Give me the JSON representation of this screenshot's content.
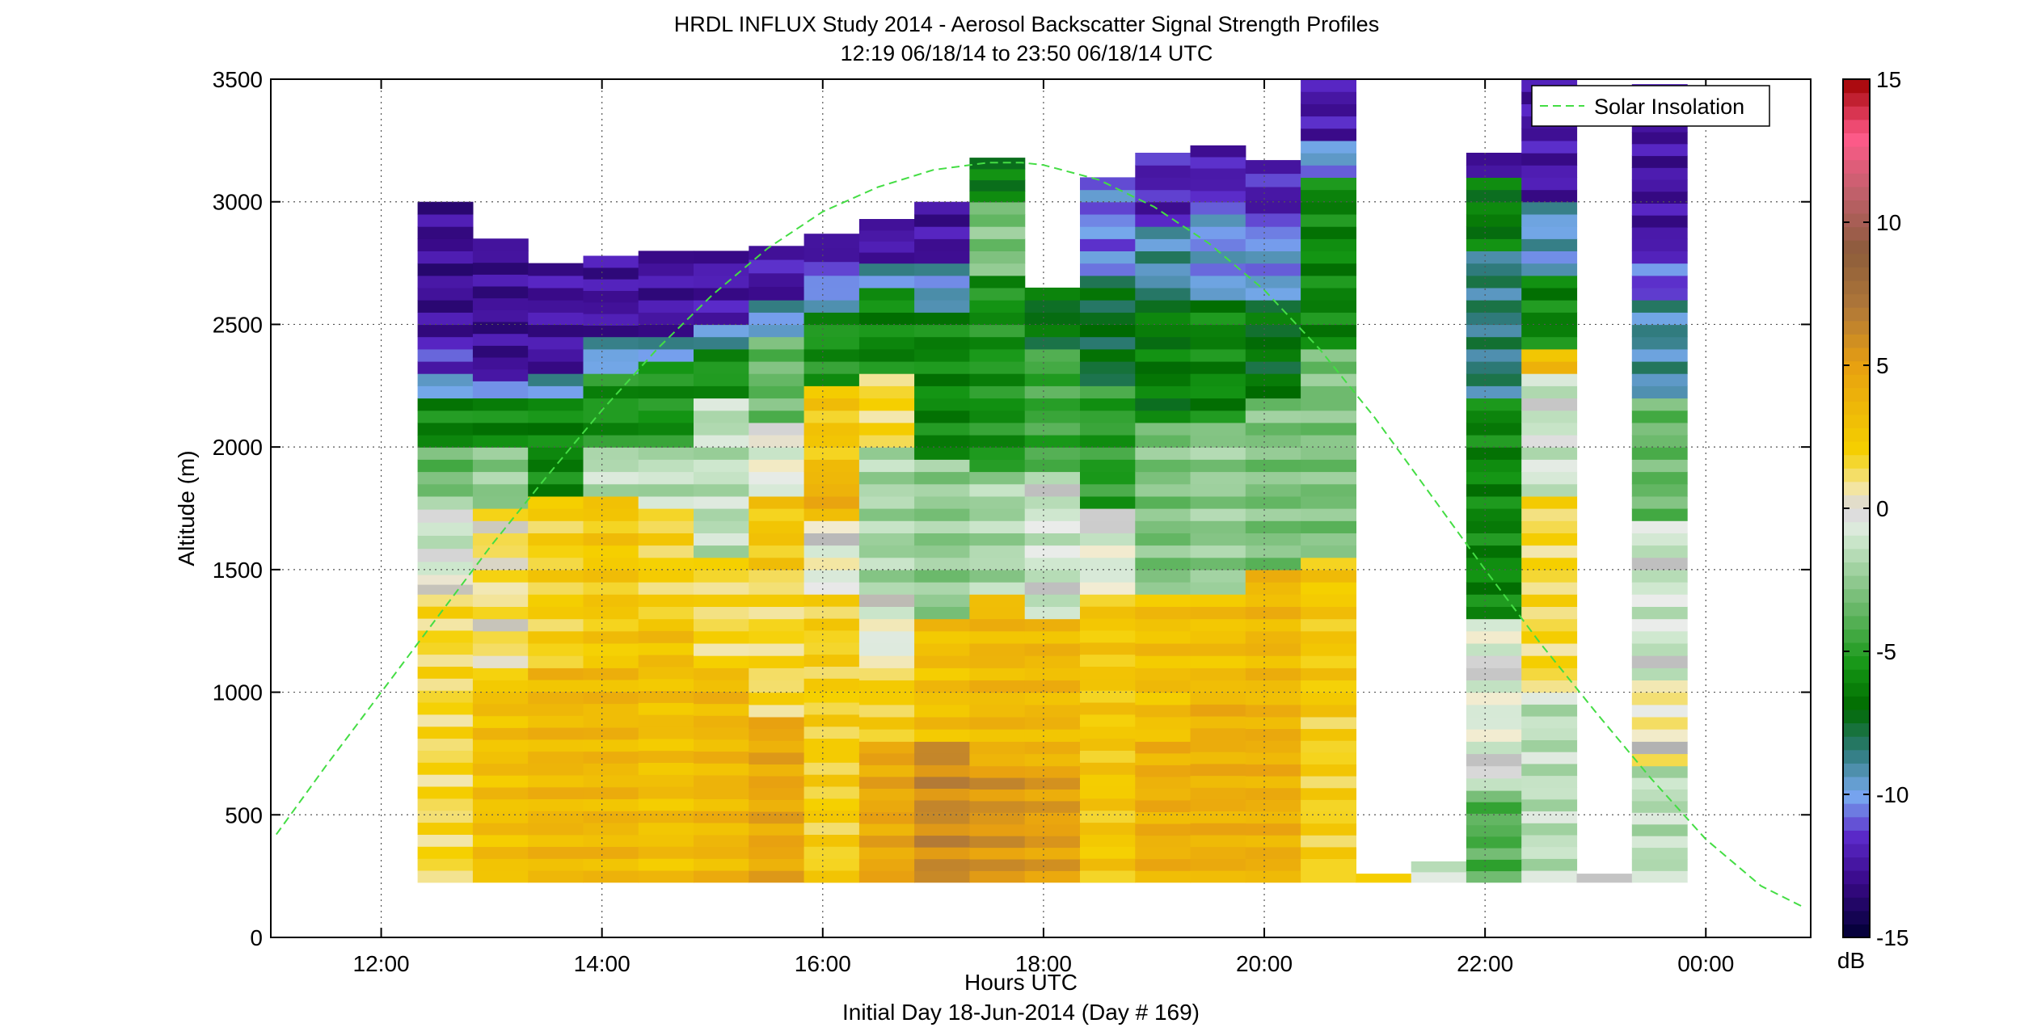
{
  "chart_data": {
    "type": "heatmap",
    "title": "HRDL INFLUX Study 2014 - Aerosol Backscatter Signal Strength Profiles",
    "subtitle": "12:19 06/18/14 to 23:50 06/18/14  UTC",
    "xlabel": "Hours UTC",
    "xlabel2": "Initial Day 18-Jun-2014 (Day # 169)",
    "ylabel": "Altitude (m)",
    "colorbar_label": "dB",
    "xlim": [
      11.0,
      24.95
    ],
    "ylim": [
      0,
      3500
    ],
    "clim": [
      -15,
      15
    ],
    "grid": true,
    "x_ticks": [
      12,
      14,
      16,
      18,
      20,
      22,
      24
    ],
    "x_tick_labels": [
      "12:00",
      "14:00",
      "16:00",
      "18:00",
      "20:00",
      "22:00",
      "00:00"
    ],
    "y_ticks": [
      0,
      500,
      1000,
      1500,
      2000,
      2500,
      3000,
      3500
    ],
    "y_tick_labels": [
      "0",
      "500",
      "1000",
      "1500",
      "2000",
      "2500",
      "3000",
      "3500"
    ],
    "colorbar_ticks": [
      -15,
      -10,
      -5,
      0,
      5,
      10,
      15
    ],
    "colorbar_tick_labels": [
      "-15",
      "-10",
      "-5",
      "0",
      "5",
      "10",
      "15"
    ],
    "colormap": [
      {
        "v": -15,
        "color": "#000033"
      },
      {
        "v": -13,
        "color": "#3a0a8a"
      },
      {
        "v": -11.5,
        "color": "#5a28c8"
      },
      {
        "v": -10,
        "color": "#78aaf0"
      },
      {
        "v": -8.5,
        "color": "#2e7a7a"
      },
      {
        "v": -7,
        "color": "#006a00"
      },
      {
        "v": -5.5,
        "color": "#149614"
      },
      {
        "v": -3,
        "color": "#7cc07c"
      },
      {
        "v": -1,
        "color": "#d0e8d0"
      },
      {
        "v": -0.3,
        "color": "#ececec"
      },
      {
        "v": 0,
        "color": "#a8a8a8"
      },
      {
        "v": 0.3,
        "color": "#f2ecd4"
      },
      {
        "v": 2,
        "color": "#f5d000"
      },
      {
        "v": 5,
        "color": "#e8a010"
      },
      {
        "v": 7,
        "color": "#b07838"
      },
      {
        "v": 9,
        "color": "#8c5c3c"
      },
      {
        "v": 11,
        "color": "#c0606a"
      },
      {
        "v": 13,
        "color": "#ff5a8a"
      },
      {
        "v": 15,
        "color": "#a00000"
      }
    ],
    "legend": {
      "position": "top-right",
      "entries": [
        "Solar Insolation"
      ],
      "line_color": "#44dd44"
    },
    "solar_insolation_curve": {
      "x": [
        11.05,
        11.5,
        12.0,
        12.5,
        13.0,
        13.5,
        14.0,
        14.5,
        15.0,
        15.5,
        16.0,
        16.5,
        17.0,
        17.5,
        17.8,
        18.0,
        18.5,
        19.0,
        19.5,
        20.0,
        20.5,
        21.0,
        21.5,
        22.0,
        22.5,
        23.0,
        23.5,
        24.0,
        24.5,
        24.9
      ],
      "y": [
        420,
        700,
        1000,
        1300,
        1600,
        1880,
        2150,
        2400,
        2620,
        2810,
        2960,
        3060,
        3130,
        3160,
        3160,
        3150,
        3090,
        2980,
        2830,
        2640,
        2400,
        2120,
        1810,
        1500,
        1200,
        920,
        650,
        400,
        210,
        120
      ]
    },
    "profiles": [
      {
        "t0": 12.33,
        "t1": 12.83,
        "top": 3000,
        "layers": [
          [
            225,
            1400,
            1.5
          ],
          [
            1400,
            1480,
            0.2
          ],
          [
            1480,
            1800,
            -1.0
          ],
          [
            1800,
            2000,
            -3.5
          ],
          [
            2000,
            2200,
            -6.0
          ],
          [
            2200,
            2300,
            -10.0
          ],
          [
            2300,
            2450,
            -11.5
          ],
          [
            2450,
            3000,
            -12.8
          ]
        ]
      },
      {
        "t0": 12.83,
        "t1": 13.33,
        "top": 2850,
        "layers": [
          [
            225,
            1050,
            3.0
          ],
          [
            1050,
            1750,
            1.0
          ],
          [
            1750,
            2000,
            -2.5
          ],
          [
            2000,
            2200,
            -6.0
          ],
          [
            2200,
            2270,
            -10.0
          ],
          [
            2270,
            2850,
            -12.8
          ]
        ]
      },
      {
        "t0": 13.33,
        "t1": 13.83,
        "top": 2750,
        "layers": [
          [
            225,
            1100,
            3.5
          ],
          [
            1100,
            1800,
            2.0
          ],
          [
            1800,
            2200,
            -6.0
          ],
          [
            2200,
            2300,
            -9.5
          ],
          [
            2300,
            2750,
            -12.5
          ]
        ]
      },
      {
        "t0": 13.83,
        "t1": 14.33,
        "top": 2780,
        "layers": [
          [
            225,
            1100,
            3.5
          ],
          [
            1100,
            1800,
            2.5
          ],
          [
            1800,
            2000,
            -1.5
          ],
          [
            2000,
            2300,
            -5.5
          ],
          [
            2300,
            2450,
            -9.5
          ],
          [
            2450,
            2780,
            -12.5
          ]
        ]
      },
      {
        "t0": 14.33,
        "t1": 14.83,
        "top": 2800,
        "layers": [
          [
            225,
            1300,
            3.0
          ],
          [
            1300,
            1750,
            1.8
          ],
          [
            1750,
            2000,
            -1.5
          ],
          [
            2000,
            2350,
            -5.5
          ],
          [
            2350,
            2450,
            -9.5
          ],
          [
            2450,
            2800,
            -12.5
          ]
        ]
      },
      {
        "t0": 14.83,
        "t1": 15.33,
        "top": 2800,
        "layers": [
          [
            225,
            1100,
            3.5
          ],
          [
            1100,
            1550,
            1.5
          ],
          [
            1550,
            2200,
            -1.5
          ],
          [
            2200,
            2400,
            -5.5
          ],
          [
            2400,
            2500,
            -9.5
          ],
          [
            2500,
            2800,
            -12.3
          ]
        ]
      },
      {
        "t0": 15.33,
        "t1": 15.83,
        "top": 2820,
        "layers": [
          [
            225,
            900,
            4.5
          ],
          [
            900,
            1500,
            1.5
          ],
          [
            1500,
            1800,
            2.5
          ],
          [
            1800,
            2100,
            -0.3
          ],
          [
            2100,
            2450,
            -3.5
          ],
          [
            2450,
            2600,
            -9.5
          ],
          [
            2600,
            2820,
            -12.3
          ]
        ]
      },
      {
        "t0": 15.83,
        "t1": 16.33,
        "top": 2870,
        "layers": [
          [
            225,
            1400,
            2.0
          ],
          [
            1400,
            1700,
            -0.2
          ],
          [
            1700,
            1900,
            4.0
          ],
          [
            1900,
            2250,
            2.5
          ],
          [
            2250,
            2550,
            -5.5
          ],
          [
            2550,
            2700,
            -10.0
          ],
          [
            2700,
            2870,
            -12.0
          ]
        ]
      },
      {
        "t0": 16.33,
        "t1": 16.83,
        "top": 2930,
        "layers": [
          [
            225,
            800,
            4.5
          ],
          [
            800,
            1100,
            2.0
          ],
          [
            1100,
            1400,
            -0.3
          ],
          [
            1400,
            2000,
            -2.0
          ],
          [
            2000,
            2300,
            1.5
          ],
          [
            2300,
            2650,
            -6.0
          ],
          [
            2650,
            2750,
            -9.5
          ],
          [
            2750,
            2930,
            -12.3
          ]
        ]
      },
      {
        "t0": 16.83,
        "t1": 17.33,
        "top": 3000,
        "layers": [
          [
            225,
            800,
            6.0
          ],
          [
            800,
            1300,
            3.0
          ],
          [
            1300,
            1950,
            -2.5
          ],
          [
            1950,
            2550,
            -6.0
          ],
          [
            2550,
            2750,
            -9.5
          ],
          [
            2750,
            3000,
            -12.5
          ]
        ]
      },
      {
        "t0": 17.33,
        "t1": 17.83,
        "top": 3180,
        "layers": [
          [
            225,
            700,
            5.5
          ],
          [
            700,
            1400,
            3.5
          ],
          [
            1400,
            1900,
            -2.0
          ],
          [
            1900,
            2700,
            -5.5
          ],
          [
            2700,
            3000,
            -3.0
          ],
          [
            3000,
            3180,
            -6.5
          ]
        ]
      },
      {
        "t0": 17.83,
        "t1": 18.33,
        "top": 2650,
        "layers": [
          [
            225,
            700,
            5.0
          ],
          [
            700,
            1300,
            3.5
          ],
          [
            1300,
            1900,
            -1.0
          ],
          [
            1900,
            2400,
            -4.5
          ],
          [
            2400,
            2650,
            -7.0
          ]
        ]
      },
      {
        "t0": 18.33,
        "t1": 18.83,
        "top": 3100,
        "layers": [
          [
            225,
            1400,
            2.5
          ],
          [
            1400,
            1750,
            -0.5
          ],
          [
            1750,
            2250,
            -5.0
          ],
          [
            2250,
            2700,
            -7.5
          ],
          [
            2700,
            3100,
            -10.5
          ]
        ]
      },
      {
        "t0": 18.83,
        "t1": 19.33,
        "top": 3200,
        "layers": [
          [
            225,
            800,
            4.0
          ],
          [
            800,
            1400,
            3.0
          ],
          [
            1400,
            2100,
            -3.0
          ],
          [
            2100,
            2600,
            -6.5
          ],
          [
            2600,
            2900,
            -9.0
          ],
          [
            2900,
            3200,
            -12.0
          ]
        ]
      },
      {
        "t0": 19.33,
        "t1": 19.83,
        "top": 3230,
        "layers": [
          [
            225,
            1000,
            4.0
          ],
          [
            1000,
            1400,
            3.0
          ],
          [
            1400,
            2100,
            -2.5
          ],
          [
            2100,
            2600,
            -6.0
          ],
          [
            2600,
            3000,
            -10.0
          ],
          [
            3000,
            3230,
            -12.0
          ]
        ]
      },
      {
        "t0": 19.83,
        "t1": 20.33,
        "top": 3170,
        "layers": [
          [
            225,
            900,
            4.0
          ],
          [
            900,
            1500,
            3.5
          ],
          [
            1500,
            2200,
            -3.0
          ],
          [
            2200,
            2600,
            -7.0
          ],
          [
            2600,
            2900,
            -10.0
          ],
          [
            2900,
            3170,
            -12.0
          ]
        ]
      },
      {
        "t0": 20.33,
        "t1": 20.83,
        "top": 3500,
        "layers": [
          [
            225,
            900,
            2.0
          ],
          [
            900,
            1550,
            2.5
          ],
          [
            1550,
            2400,
            -3.0
          ],
          [
            2400,
            3100,
            -6.0
          ],
          [
            3100,
            3250,
            -10.0
          ],
          [
            3250,
            3500,
            -12.3
          ]
        ]
      },
      {
        "t0": 20.83,
        "t1": 21.33,
        "top": 260,
        "layers": [
          [
            225,
            260,
            2.0
          ]
        ]
      },
      {
        "t0": 21.33,
        "t1": 21.83,
        "top": 310,
        "layers": [
          [
            225,
            310,
            -1.0
          ]
        ]
      },
      {
        "t0": 21.83,
        "t1": 22.33,
        "top": 3200,
        "layers": [
          [
            225,
            600,
            -4.0
          ],
          [
            600,
            1300,
            -0.5
          ],
          [
            1300,
            2200,
            -6.0
          ],
          [
            2200,
            2800,
            -8.5
          ],
          [
            2800,
            3100,
            -6.5
          ],
          [
            3100,
            3200,
            -12.3
          ]
        ]
      },
      {
        "t0": 22.33,
        "t1": 22.83,
        "top": 3500,
        "layers": [
          [
            225,
            1000,
            -1.5
          ],
          [
            1000,
            1800,
            1.5
          ],
          [
            1800,
            2300,
            -1.0
          ],
          [
            2300,
            2400,
            3.5
          ],
          [
            2400,
            2700,
            -6.0
          ],
          [
            2700,
            3000,
            -9.5
          ],
          [
            3000,
            3500,
            -12.3
          ]
        ]
      },
      {
        "t0": 22.83,
        "t1": 23.33,
        "top": 260,
        "layers": [
          [
            225,
            260,
            -1.0
          ]
        ]
      },
      {
        "t0": 23.33,
        "t1": 23.83,
        "top": 3480,
        "layers": [
          [
            225,
            700,
            -1.5
          ],
          [
            700,
            1050,
            0.5
          ],
          [
            1050,
            1700,
            -1.0
          ],
          [
            1700,
            2200,
            -3.5
          ],
          [
            2200,
            2600,
            -9.0
          ],
          [
            2600,
            2800,
            -11.0
          ],
          [
            2800,
            3480,
            -12.5
          ]
        ]
      }
    ]
  }
}
